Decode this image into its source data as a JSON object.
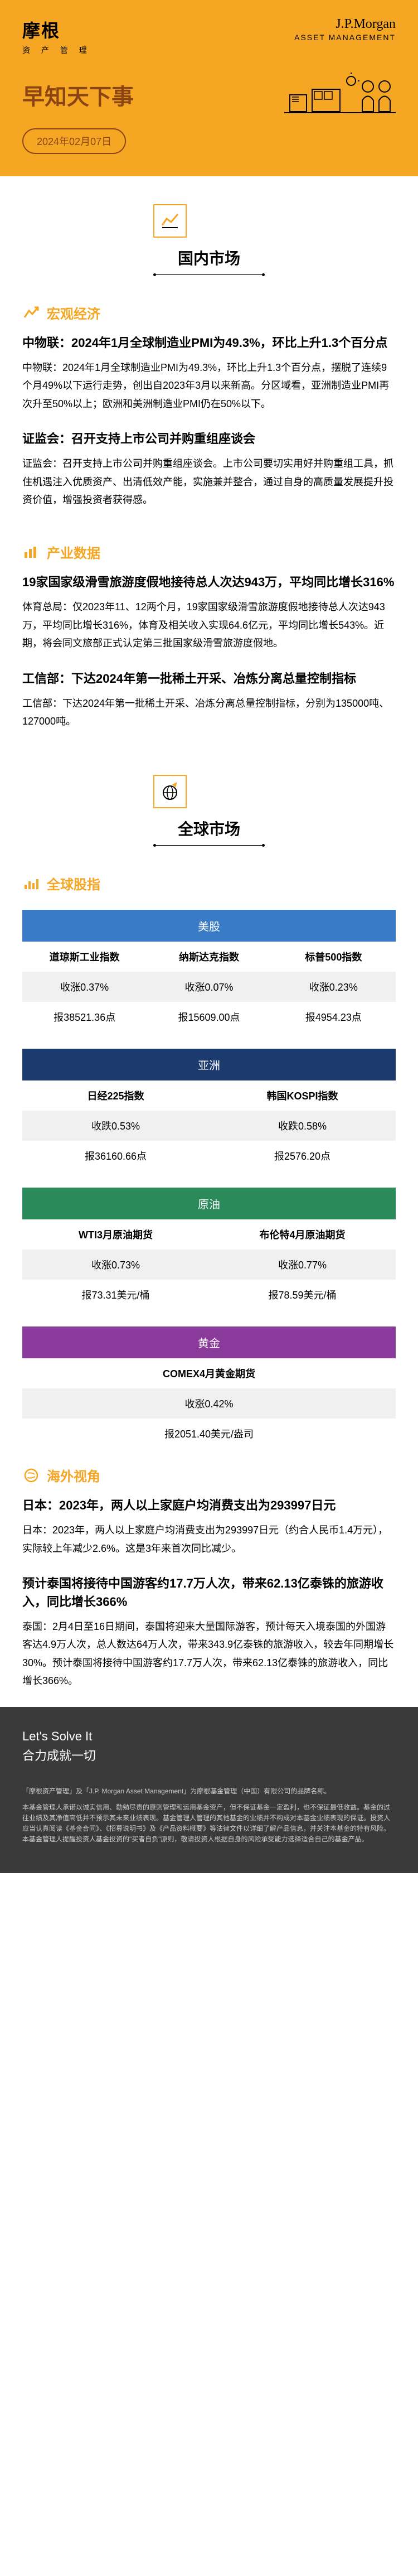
{
  "brand": {
    "cn": "摩根",
    "cn_sub": "资 产 管 理",
    "en": "J.P.Morgan",
    "en_sub": "ASSET MANAGEMENT"
  },
  "hero": {
    "title": "早知天下事",
    "date": "2024年02月07日"
  },
  "colors": {
    "accent": "#f5a623",
    "brown": "#8b4513",
    "blue": "#3a7bc8",
    "navy": "#1a3a6e",
    "green": "#2a8a5a",
    "purple": "#8a3a9a",
    "dark": "#3a3a3a"
  },
  "sections": {
    "domestic": {
      "title": "国内市场",
      "subsections": [
        {
          "icon": "trend-up",
          "title": "宏观经济",
          "articles": [
            {
              "title": "中物联：2024年1月全球制造业PMI为49.3%，环比上升1.3个百分点",
              "body": "中物联：2024年1月全球制造业PMI为49.3%，环比上升1.3个百分点，摆脱了连续9个月49%以下运行走势，创出自2023年3月以来新高。分区域看，亚洲制造业PMI再次升至50%以上；欧洲和美洲制造业PMI仍在50%以下。"
            },
            {
              "title": "证监会：召开支持上市公司并购重组座谈会",
              "body": "证监会：召开支持上市公司并购重组座谈会。上市公司要切实用好并购重组工具，抓住机遇注入优质资产、出清低效产能，实施兼并整合，通过自身的高质量发展提升投资价值，增强投资者获得感。"
            }
          ]
        },
        {
          "icon": "bar-chart",
          "title": "产业数据",
          "articles": [
            {
              "title": "19家国家级滑雪旅游度假地接待总人次达943万，平均同比增长316%",
              "body": "体育总局：仅2023年11、12两个月，19家国家级滑雪旅游度假地接待总人次达943万，平均同比增长316%，体育及相关收入实现64.6亿元，平均同比增长543%。近期，将会同文旅部正式认定第三批国家级滑雪旅游度假地。"
            },
            {
              "title": "工信部：下达2024年第一批稀土开采、冶炼分离总量控制指标",
              "body": "工信部：下达2024年第一批稀土开采、冶炼分离总量控制指标，分别为135000吨、127000吨。"
            }
          ]
        }
      ]
    },
    "global": {
      "title": "全球市场",
      "indices": {
        "icon": "stock",
        "title": "全球股指",
        "tables": [
          {
            "header": "美股",
            "color": "blue",
            "cols": [
              "道琼斯工业指数",
              "纳斯达克指数",
              "标普500指数"
            ],
            "rows": [
              [
                "收涨0.37%",
                "收涨0.07%",
                "收涨0.23%"
              ],
              [
                "报38521.36点",
                "报15609.00点",
                "报4954.23点"
              ]
            ]
          },
          {
            "header": "亚洲",
            "color": "navy",
            "cols": [
              "日经225指数",
              "韩国KOSPI指数"
            ],
            "rows": [
              [
                "收跌0.53%",
                "收跌0.58%"
              ],
              [
                "报36160.66点",
                "报2576.20点"
              ]
            ]
          },
          {
            "header": "原油",
            "color": "green",
            "cols": [
              "WTI3月原油期货",
              "布伦特4月原油期货"
            ],
            "rows": [
              [
                "收涨0.73%",
                "收涨0.77%"
              ],
              [
                "报73.31美元/桶",
                "报78.59美元/桶"
              ]
            ]
          },
          {
            "header": "黄金",
            "color": "purple",
            "cols": [
              "COMEX4月黄金期货"
            ],
            "rows": [
              [
                "收涨0.42%"
              ],
              [
                "报2051.40美元/盎司"
              ]
            ]
          }
        ]
      },
      "overseas": {
        "icon": "globe",
        "title": "海外视角",
        "articles": [
          {
            "title": "日本：2023年，两人以上家庭户均消费支出为293997日元",
            "body": "日本：2023年，两人以上家庭户均消费支出为293997日元（约合人民币1.4万元），实际较上年减少2.6%。这是3年来首次同比减少。"
          },
          {
            "title": "预计泰国将接待中国游客约17.7万人次，带来62.13亿泰铢的旅游收入，同比增长366%",
            "body": "泰国：2月4日至16日期间，泰国将迎来大量国际游客，预计每天入境泰国的外国游客达4.9万人次，总人数达64万人次，带来343.9亿泰铢的旅游收入，较去年同期增长30%。预计泰国将接待中国游客约17.7万人次，带来62.13亿泰铢的旅游收入，同比增长366%。"
          }
        ]
      }
    }
  },
  "footer": {
    "tag_en": "Let's Solve It",
    "tag_cn": "合力成就一切",
    "disclaimer": [
      "「摩根资产管理」及「J.P. Morgan Asset Management」为摩根基金管理（中国）有限公司的品牌名称。",
      "本基金管理人承诺以诚实信用、勤勉尽责的原则管理和运用基金资产，但不保证基金一定盈利，也不保证最低收益。基金的过往业绩及其净值高低并不预示其未来业绩表现。基金管理人管理的其他基金的业绩并不构成对本基金业绩表现的保证。投资人应当认真阅读《基金合同》、《招募说明书》及《产品资料概要》等法律文件以详细了解产品信息，并关注本基金的特有风险。本基金管理人提醒投资人基金投资的\"买者自负\"原则，敬请投资人根据自身的风险承受能力选择适合自己的基金产品。"
    ]
  }
}
